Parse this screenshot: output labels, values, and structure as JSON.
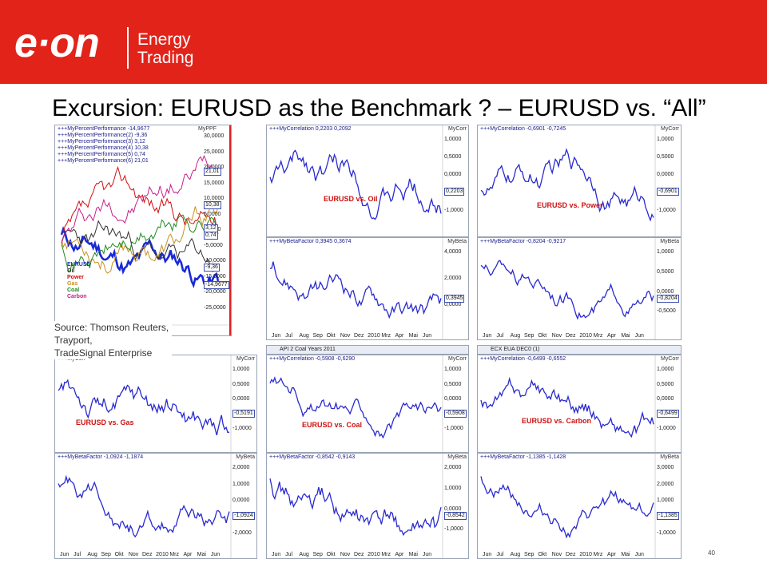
{
  "header": {
    "logo": "e·on",
    "brand_lines": [
      "Energy",
      "Trading"
    ],
    "bg_color": "#e2231a"
  },
  "title": "Excursion: EURUSD as the Benchmark ? – EURUSD vs. “All”",
  "source": [
    "Source: Thomson Reuters,",
    "Trayport,",
    "TradeSignal Enterprise"
  ],
  "page_number": "40",
  "colors": {
    "line": "#2a2ad0",
    "secondary": "#d02020",
    "panel_border": "#9aa4b4"
  },
  "performance": {
    "legend_title": "+++MyPercentPerformance -14,9677",
    "legend_lines": [
      "+++MyPercentPerformance(2) -9,36",
      "+++MyPercentPerformance(3) 3,12",
      "+++MyPercentPerformance(4) 10,38",
      "+++MyPercentPerformance(5) 0,74",
      "+++MyPercentPerformance(6) 21,01"
    ],
    "axis_title": "MyPPF",
    "y_ticks": [
      "30,0000",
      "25,0000",
      "20,0000",
      "15,0000",
      "10,0000",
      "5,0000",
      "0,0000",
      "-5,0000",
      "-10,0000",
      "-15,0000",
      "-20,0000",
      "-25,0000"
    ],
    "value_boxes": [
      "21,01",
      "10,38",
      "3,12",
      "0,74",
      "-9,36",
      "-14,9677"
    ],
    "series": [
      {
        "name": "EURUSD",
        "color": "#1a2ad8"
      },
      {
        "name": "Oil",
        "color": "#333333"
      },
      {
        "name": "Power",
        "color": "#d01010"
      },
      {
        "name": "Gas",
        "color": "#c89020"
      },
      {
        "name": "Coal",
        "color": "#208a20"
      },
      {
        "name": "Carbon",
        "color": "#c8208a"
      }
    ]
  },
  "x_labels": [
    "Jun",
    "Jul",
    "Aug",
    "Sep",
    "Okt",
    "Nov",
    "Dez",
    "2010",
    "Mrz",
    "Apr",
    "Mai",
    "Jun"
  ],
  "corr_ticks": [
    "1,0000",
    "0,5000",
    "0,0000",
    "-0,5000",
    "-1,0000"
  ],
  "panels": [
    {
      "id": "oil",
      "caption": "EURUSD vs. Oil",
      "corr_title": "+++MyCorrelation 0,2203 0,2092",
      "corr_value": "0,2203",
      "beta_title": "+++MyBetaFactor 0,3945 0,3674",
      "beta_value": "0,3945",
      "beta_ticks": [
        "4,0000",
        "2,0000",
        "0,0000"
      ],
      "tab": ""
    },
    {
      "id": "power",
      "caption": "EURUSD vs. Power",
      "corr_title": "+++MyCorrelation -0,6901 -0,7245",
      "corr_value": "-0,6901",
      "beta_title": "+++MyBetaFactor -0,8204 -0,9217",
      "beta_value": "-0,8204",
      "beta_ticks": [
        "1,0000",
        "0,5000",
        "0,0000",
        "-0,5000"
      ],
      "tab": ""
    },
    {
      "id": "gas",
      "caption": "EURUSD vs. Gas",
      "corr_title": "+++MyCorr",
      "corr_value": "-0,5191",
      "beta_title": "+++MyBetaFactor -1,0924 -1,1874",
      "beta_value": "-1,0924",
      "beta_ticks": [
        "2,0000",
        "1,0000",
        "0,0000",
        "-1,0000",
        "-2,0000"
      ],
      "tab": ""
    },
    {
      "id": "coal",
      "caption": "EURUSD vs. Coal",
      "corr_title": "+++MyCorrelation -0,5908 -0,6290",
      "corr_value": "-0,5908",
      "beta_title": "+++MyBetaFactor -0,8542 -0,9143",
      "beta_value": "-0,8542",
      "beta_ticks": [
        "2,0000",
        "1,0000",
        "0,0000",
        "-1,0000"
      ],
      "tab": "API 2 Coal Years 2011"
    },
    {
      "id": "carbon",
      "caption": "EURUSD vs. Carbon",
      "corr_title": "+++MyCorrelation -0,6499 -0,6552",
      "corr_value": "-0,6499",
      "beta_title": "+++MyBetaFactor -1,1385 -1,1428",
      "beta_value": "-1,1385",
      "beta_ticks": [
        "3,0000",
        "2,0000",
        "1,0000",
        "0,0000",
        "-1,0000"
      ],
      "tab": "ECX EUA DEC0 (1)"
    }
  ],
  "axis_names": {
    "corr": "MyCorr",
    "beta": "MyBeta"
  }
}
